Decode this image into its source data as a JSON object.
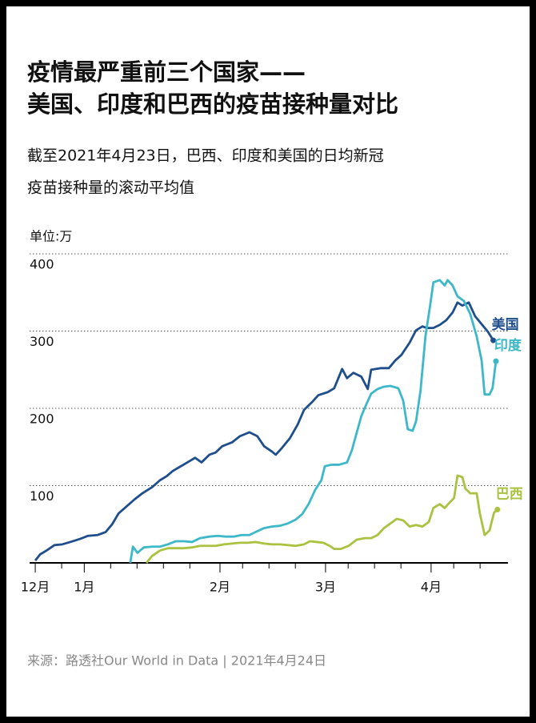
{
  "chart_data": {
    "type": "line",
    "title": [
      "疫情最严重前三个国家——",
      "美国、印度和巴西的疫苗接种量对比"
    ],
    "subtitle": [
      "截至2021年4月23日，巴西、印度和美国的日均新冠",
      "疫苗接种量的滚动平均值"
    ],
    "unit_label": "单位:万",
    "source": "来源：路透社Our World in Data | 2021年4月24日",
    "xlim": [
      -1.5,
      125.4
    ],
    "xticks": [
      {
        "value": 0,
        "label": "12月"
      },
      {
        "value": 13,
        "label": "1月"
      },
      {
        "value": 49,
        "label": "2月"
      },
      {
        "value": 77,
        "label": "3月"
      },
      {
        "value": 105,
        "label": "4月"
      }
    ],
    "xminorticks": [
      7,
      20,
      27,
      34,
      41,
      55,
      62,
      69,
      83,
      90,
      97,
      111,
      118
    ],
    "ylim": [
      0,
      400
    ],
    "yticks": [
      100,
      200,
      300,
      400
    ],
    "grid": true,
    "series": [
      {
        "name": "美国",
        "color": "#1f4e8c",
        "x": [
          0,
          1.3,
          3.0,
          5.1,
          7.2,
          9.3,
          11.9,
          14.0,
          16.5,
          18.7,
          20.4,
          22.1,
          24.2,
          26.3,
          28.4,
          31.0,
          33.1,
          34.8,
          36.5,
          38.6,
          40.7,
          42.4,
          44.1,
          46.2,
          47.9,
          49.6,
          52.2,
          54.3,
          56.8,
          58.9,
          60.7,
          62.8,
          63.8,
          65.3,
          67.5,
          69.6,
          71.3,
          73.4,
          75.1,
          77.6,
          79.3,
          81.4,
          82.7,
          84.4,
          86.5,
          88.2,
          89.1,
          91.6,
          93.8,
          95.5,
          97.1,
          99.3,
          101.0,
          102.7,
          103.9,
          105.6,
          107.3,
          109.0,
          110.7,
          112.0,
          113.3,
          115.0,
          116.7,
          118.4,
          120.1,
          121.5
        ],
        "values": [
          3,
          11,
          16,
          23,
          24,
          27,
          31,
          35,
          36,
          40,
          50,
          64,
          73,
          82,
          90,
          98,
          107,
          112,
          119,
          125,
          131,
          136,
          130,
          140,
          143,
          151,
          156,
          164,
          169,
          164,
          151,
          144,
          140,
          148,
          161,
          179,
          198,
          208,
          217,
          221,
          226,
          251,
          239,
          246,
          241,
          225,
          250,
          252,
          252,
          262,
          269,
          285,
          301,
          306,
          304,
          304,
          308,
          314,
          324,
          337,
          333,
          337,
          319,
          309,
          299,
          288
        ]
      },
      {
        "name": "印度",
        "color": "#3cb8c9",
        "x": [
          25.2,
          25.9,
          27.1,
          28.8,
          31.0,
          33.1,
          35.2,
          37.3,
          39.5,
          41.6,
          43.7,
          46.2,
          48.4,
          50.5,
          52.6,
          54.7,
          56.8,
          58.5,
          60.7,
          62.8,
          64.9,
          67.0,
          69.1,
          70.8,
          72.5,
          74.2,
          75.9,
          76.8,
          78.5,
          80.6,
          82.7,
          84.0,
          85.3,
          86.5,
          87.8,
          89.1,
          90.8,
          92.5,
          94.2,
          96.3,
          97.6,
          98.8,
          100.1,
          101.0,
          102.2,
          103.5,
          104.8,
          105.6,
          107.3,
          108.6,
          109.4,
          110.7,
          112.0,
          113.7,
          115.4,
          117.1,
          118.4,
          119.2,
          120.5,
          121.3,
          122.2
        ],
        "values": [
          0,
          21,
          13,
          20,
          21,
          21,
          24,
          28,
          28,
          27,
          32,
          34,
          35,
          34,
          34,
          36,
          36,
          40,
          45,
          47,
          48,
          51,
          56,
          63,
          76,
          94,
          107,
          125,
          127,
          127,
          130,
          146,
          169,
          190,
          205,
          219,
          225,
          228,
          229,
          226,
          210,
          173,
          171,
          183,
          223,
          293,
          335,
          363,
          366,
          359,
          366,
          359,
          345,
          339,
          322,
          293,
          262,
          218,
          218,
          226,
          261
        ]
      },
      {
        "name": "巴西",
        "color": "#a9c23f",
        "x": [
          29.5,
          31.0,
          33.1,
          35.2,
          37.3,
          39.5,
          41.6,
          43.7,
          45.8,
          47.9,
          50.1,
          52.2,
          54.3,
          56.4,
          58.5,
          60.7,
          62.8,
          64.9,
          67.0,
          69.1,
          71.3,
          72.9,
          74.7,
          76.4,
          78.1,
          79.3,
          81.0,
          83.1,
          85.3,
          87.4,
          89.1,
          90.8,
          92.5,
          94.2,
          95.9,
          97.6,
          99.3,
          101.0,
          102.7,
          104.4,
          105.6,
          107.3,
          108.6,
          109.9,
          111.1,
          112.0,
          113.3,
          114.1,
          115.4,
          117.1,
          117.9,
          119.2,
          120.5,
          121.7,
          122.6
        ],
        "values": [
          0,
          9,
          16,
          19,
          19,
          19,
          20,
          22,
          22,
          22,
          24,
          25,
          26,
          26,
          27,
          25,
          24,
          24,
          23,
          22,
          24,
          28,
          27,
          26,
          22,
          18,
          18,
          22,
          30,
          32,
          32,
          36,
          45,
          51,
          57,
          55,
          47,
          49,
          47,
          53,
          71,
          76,
          71,
          78,
          84,
          113,
          111,
          96,
          90,
          90,
          65,
          36,
          42,
          65,
          69
        ]
      }
    ]
  }
}
